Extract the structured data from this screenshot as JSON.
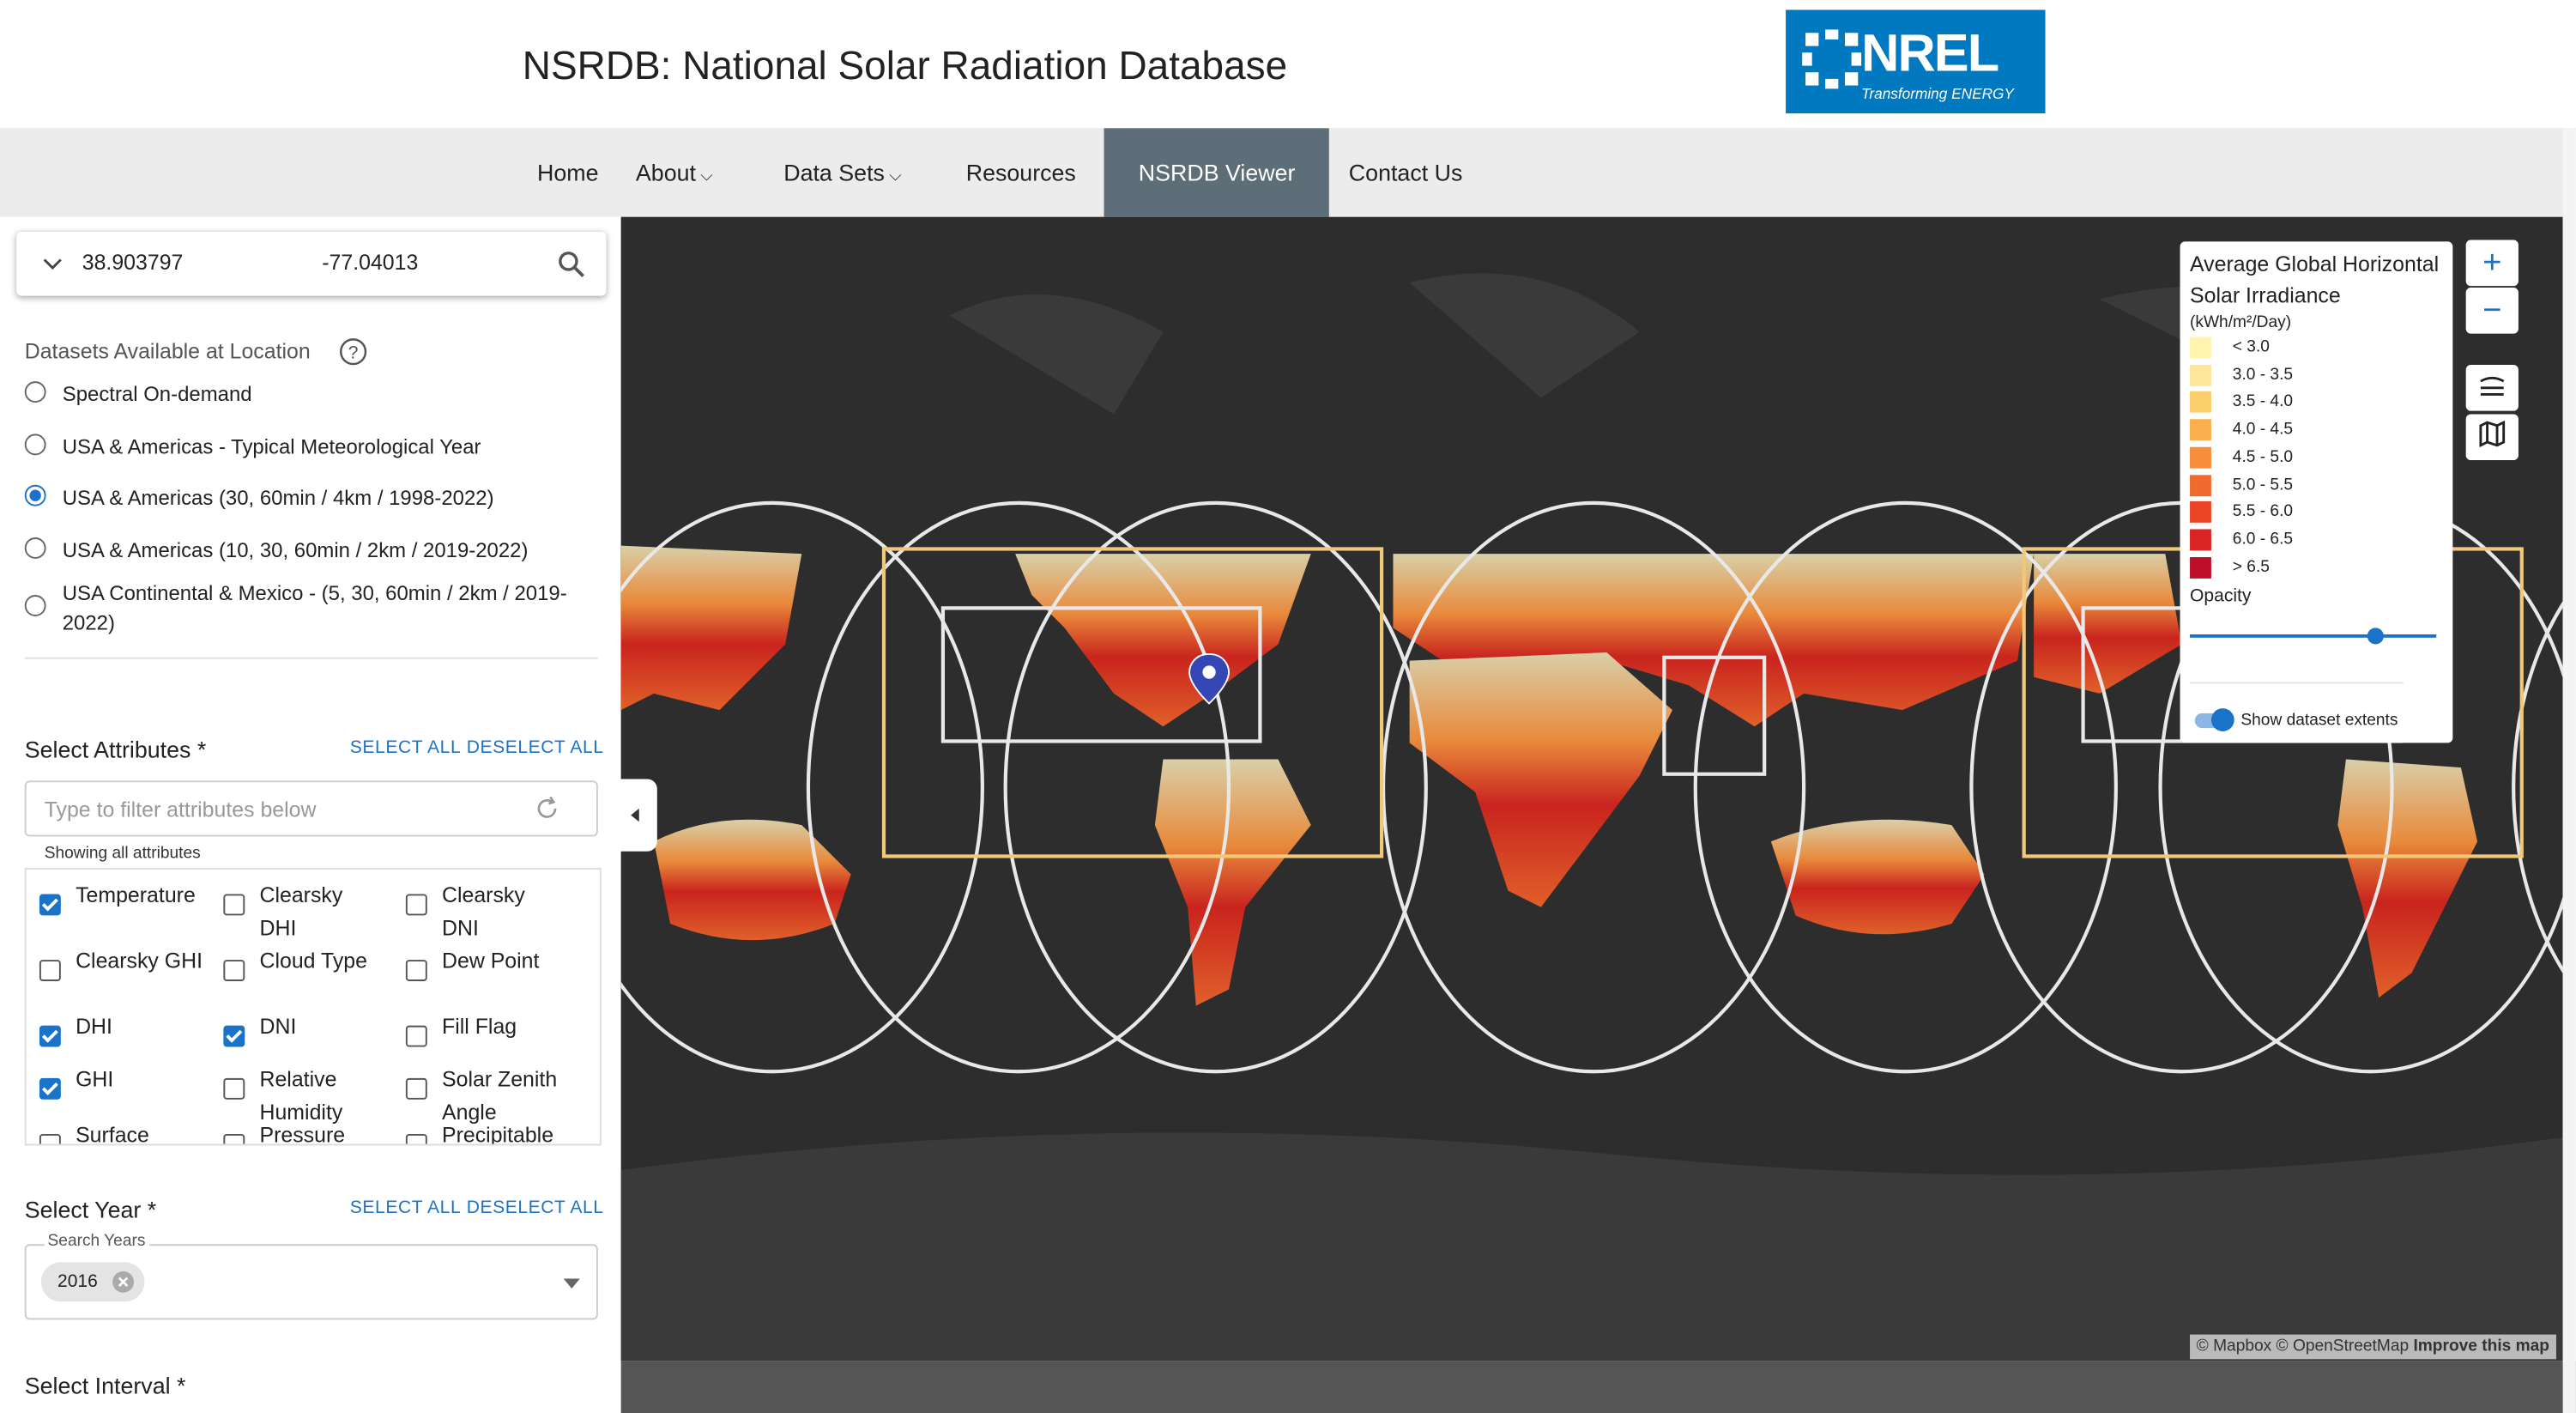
{
  "header": {
    "title": "NSRDB: National Solar Radiation Database",
    "logo": "NREL",
    "tagline": "Transforming ENERGY"
  },
  "nav": [
    {
      "label": "Home"
    },
    {
      "label": "About",
      "menu": true
    },
    {
      "label": "Data Sets",
      "menu": true
    },
    {
      "label": "Resources"
    },
    {
      "label": "NSRDB Viewer",
      "active": true
    },
    {
      "label": "Contact Us"
    }
  ],
  "search": {
    "latitude": "38.903797",
    "longitude": "-77.04013"
  },
  "datasets": {
    "label": "Datasets Available at Location",
    "selected": 2,
    "options": [
      "Spectral On-demand",
      "USA & Americas - Typical Meteorological Year",
      "USA & Americas (30, 60min / 4km / 1998-2022)",
      "USA & Americas (10, 30, 60min / 2km / 2019-2022)",
      "USA Continental & Mexico - (5, 30, 60min / 2km / 2019-2022)"
    ]
  },
  "attributes": {
    "label": "Select Attributes *",
    "select_all": "SELECT ALL",
    "deselect_all": "DESELECT ALL",
    "filter_placeholder": "Type to filter attributes below",
    "status": "Showing all attributes",
    "items": [
      {
        "label": "Temperature",
        "checked": true
      },
      {
        "label": "Clearsky DHI",
        "checked": false
      },
      {
        "label": "Clearsky DNI",
        "checked": false
      },
      {
        "label": "Clearsky GHI",
        "checked": false
      },
      {
        "label": "Cloud Type",
        "checked": false
      },
      {
        "label": "Dew Point",
        "checked": false
      },
      {
        "label": "DHI",
        "checked": true
      },
      {
        "label": "DNI",
        "checked": true
      },
      {
        "label": "Fill Flag",
        "checked": false
      },
      {
        "label": "GHI",
        "checked": true
      },
      {
        "label": "Relative Humidity",
        "checked": false
      },
      {
        "label": "Solar Zenith Angle",
        "checked": false
      },
      {
        "label": "Surface",
        "checked": false
      },
      {
        "label": "Pressure",
        "checked": false
      },
      {
        "label": "Precipitable",
        "checked": false
      }
    ]
  },
  "year": {
    "label": "Select Year *",
    "select_all": "SELECT ALL",
    "deselect_all": "DESELECT ALL",
    "field_label": "Search Years",
    "selected": [
      "2016"
    ]
  },
  "interval": {
    "label": "Select Interval *"
  },
  "legend": {
    "title": "Average Global Horizontal Solar Irradiance",
    "unit": "(kWh/m²/Day)",
    "opacity_label": "Opacity",
    "extents_label": "Show dataset extents",
    "items": [
      {
        "label": "< 3.0",
        "color": "#fff5b0"
      },
      {
        "label": "3.0 - 3.5",
        "color": "#fde59a"
      },
      {
        "label": "3.5 - 4.0",
        "color": "#fbcf6c"
      },
      {
        "label": "4.0 - 4.5",
        "color": "#f9b04c"
      },
      {
        "label": "4.5 - 5.0",
        "color": "#f68e3c"
      },
      {
        "label": "5.0 - 5.5",
        "color": "#f26b2e"
      },
      {
        "label": "5.5 - 6.0",
        "color": "#ec4526"
      },
      {
        "label": "6.0 - 6.5",
        "color": "#db2424"
      },
      {
        "label": "> 6.5",
        "color": "#bd0f2a"
      }
    ]
  },
  "map": {
    "attribution": "© Mapbox © OpenStreetMap",
    "improve": "Improve this map"
  }
}
